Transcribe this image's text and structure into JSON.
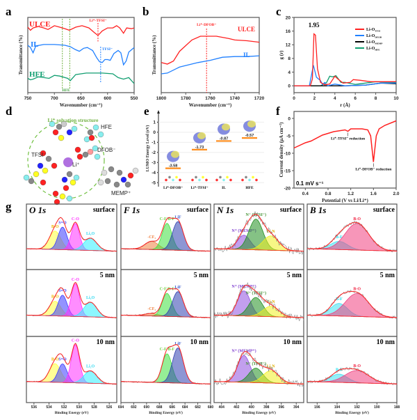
{
  "panel_labels": [
    "a",
    "b",
    "c",
    "d",
    "e",
    "f",
    "g"
  ],
  "colors": {
    "ULCE": "#ff2020",
    "IL": "#2080ff",
    "HFE": "#109e70"
  },
  "chart_data": [
    {
      "id": "a",
      "type": "line",
      "xlabel": "Wavenumber (cm⁻¹)",
      "ylabel": "Transmittance (%)",
      "xlim": [
        750,
        550
      ],
      "xticks": [
        "750",
        "700",
        "650",
        "600",
        "550"
      ],
      "series": [
        {
          "name": "ULCE",
          "color": "#ff2020",
          "points": [
            [
              750,
              8.7
            ],
            [
              745,
              8.3
            ],
            [
              740,
              8.6
            ],
            [
              730,
              8.8
            ],
            [
              720,
              8.6
            ],
            [
              712,
              8.4
            ],
            [
              700,
              8.9
            ],
            [
              690,
              8.7
            ],
            [
              680,
              8.5
            ],
            [
              672,
              8.3
            ],
            [
              660,
              8.7
            ],
            [
              648,
              8.9
            ],
            [
              635,
              8.6
            ],
            [
              625,
              8.0
            ],
            [
              618,
              7.6
            ],
            [
              610,
              8.2
            ],
            [
              600,
              8.6
            ],
            [
              590,
              8.6
            ],
            [
              583,
              8.9
            ],
            [
              577,
              8.6
            ],
            [
              570,
              7.9
            ],
            [
              564,
              8.6
            ],
            [
              555,
              8.5
            ],
            [
              550,
              8.6
            ]
          ]
        },
        {
          "name": "IL",
          "color": "#2080ff",
          "points": [
            [
              750,
              6.3
            ],
            [
              745,
              6.0
            ],
            [
              740,
              5.3
            ],
            [
              735,
              6.2
            ],
            [
              720,
              6.4
            ],
            [
              700,
              6.4
            ],
            [
              680,
              6.3
            ],
            [
              670,
              6.1
            ],
            [
              660,
              5.7
            ],
            [
              653,
              5.5
            ],
            [
              645,
              5.9
            ],
            [
              638,
              6.0
            ],
            [
              628,
              5.6
            ],
            [
              620,
              4.6
            ],
            [
              615,
              4.1
            ],
            [
              610,
              4.0
            ],
            [
              605,
              4.4
            ],
            [
              600,
              4.4
            ],
            [
              595,
              4.3
            ],
            [
              588,
              5.2
            ],
            [
              580,
              5.6
            ],
            [
              575,
              5.3
            ],
            [
              570,
              3.7
            ],
            [
              565,
              4.2
            ],
            [
              560,
              5.4
            ],
            [
              550,
              6.0
            ]
          ]
        },
        {
          "name": "HFE",
          "color": "#109e70",
          "points": [
            [
              750,
              1.9
            ],
            [
              745,
              1.7
            ],
            [
              740,
              1.8
            ],
            [
              730,
              2.1
            ],
            [
              720,
              2.0
            ],
            [
              710,
              1.9
            ],
            [
              700,
              2.3
            ],
            [
              690,
              2.2
            ],
            [
              680,
              2.0
            ],
            [
              675,
              1.9
            ],
            [
              670,
              1.6
            ],
            [
              660,
              2.4
            ],
            [
              640,
              2.6
            ],
            [
              610,
              2.6
            ],
            [
              590,
              2.5
            ],
            [
              580,
              2.0
            ],
            [
              570,
              1.8
            ],
            [
              560,
              2.0
            ],
            [
              550,
              1.2
            ]
          ]
        }
      ],
      "annotations": [
        {
          "text": "Li⁺-TFSI⁻",
          "x": 618,
          "color": "#ff2020"
        },
        {
          "text": "TFSI⁻",
          "x": 613,
          "color": "#2080ff"
        },
        {
          "text": "HFE",
          "x": [
            685,
            671
          ],
          "color": "#70b040"
        }
      ]
    },
    {
      "id": "b",
      "type": "line",
      "xlabel": "Wavenumber (cm⁻¹)",
      "ylabel": "Transmittance (%)",
      "xlim": [
        1800,
        1720
      ],
      "xticks": [
        "1800",
        "1780",
        "1760",
        "1740",
        "1720"
      ],
      "series": [
        {
          "name": "ULCE",
          "color": "#ff2020",
          "points": [
            [
              1800,
              4.0
            ],
            [
              1795,
              3.8
            ],
            [
              1790,
              4.2
            ],
            [
              1785,
              5.5
            ],
            [
              1775,
              7.0
            ],
            [
              1768,
              7.5
            ],
            [
              1755,
              7.5
            ],
            [
              1745,
              7.2
            ],
            [
              1740,
              7.0
            ],
            [
              1730,
              6.9
            ],
            [
              1720,
              6.7
            ]
          ]
        },
        {
          "name": "IL",
          "color": "#2080ff",
          "points": [
            [
              1800,
              2.5
            ],
            [
              1795,
              2.6
            ],
            [
              1785,
              3.4
            ],
            [
              1770,
              4.0
            ],
            [
              1760,
              4.3
            ],
            [
              1750,
              4.7
            ],
            [
              1740,
              4.8
            ],
            [
              1730,
              4.8
            ],
            [
              1720,
              4.9
            ]
          ]
        }
      ],
      "annotations": [
        {
          "text": "Li⁺-DFOB⁻",
          "x": 1763,
          "color": "#ff2020"
        }
      ]
    },
    {
      "id": "c",
      "type": "line",
      "xlabel": "r (Å)",
      "ylabel": "g (r)",
      "xlim": [
        0,
        10
      ],
      "ylim": [
        -2,
        20
      ],
      "xticks": [
        "0",
        "2",
        "4",
        "6",
        "8",
        "10"
      ],
      "yticks": [
        "0",
        "4",
        "8",
        "12",
        "16",
        "20"
      ],
      "legend": "top-right",
      "series": [
        {
          "name": "Li-O",
          "sub": "TFSI",
          "color": "#ff2020",
          "points": [
            [
              0,
              0
            ],
            [
              1.6,
              0
            ],
            [
              1.8,
              2
            ],
            [
              1.95,
              15.2
            ],
            [
              2.1,
              14.8
            ],
            [
              2.3,
              5
            ],
            [
              2.6,
              1
            ],
            [
              3,
              0.3
            ],
            [
              3.5,
              0.5
            ],
            [
              4,
              2.8
            ],
            [
              4.3,
              2
            ],
            [
              4.8,
              0.8
            ],
            [
              5.5,
              1
            ],
            [
              5.8,
              1.8
            ],
            [
              6.5,
              1.6
            ],
            [
              7.5,
              1.2
            ],
            [
              10,
              1.2
            ]
          ]
        },
        {
          "name": "Li-O",
          "sub": "DFOB",
          "color": "#2080ff",
          "points": [
            [
              0,
              0
            ],
            [
              1.5,
              0
            ],
            [
              1.9,
              6
            ],
            [
              2.2,
              2.5
            ],
            [
              2.6,
              1.5
            ],
            [
              2.8,
              0.3
            ],
            [
              3,
              1
            ],
            [
              3.3,
              0
            ],
            [
              4,
              0.5
            ],
            [
              5,
              0
            ],
            [
              7,
              0.2
            ],
            [
              8.5,
              0.8
            ],
            [
              10,
              0.8
            ]
          ]
        },
        {
          "name": "Li-O",
          "sub": "MEMP",
          "color": "#000000",
          "points": [
            [
              0,
              0
            ],
            [
              2.5,
              0
            ],
            [
              5,
              0
            ],
            [
              7,
              0.2
            ],
            [
              8.5,
              0.8
            ],
            [
              10,
              0.6
            ]
          ]
        },
        {
          "name": "Li-O",
          "sub": "HFE",
          "color": "#109e70",
          "points": [
            [
              0,
              0
            ],
            [
              2.6,
              0
            ],
            [
              3.2,
              1
            ],
            [
              3.5,
              2.8
            ],
            [
              3.8,
              2.6
            ],
            [
              4.1,
              3
            ],
            [
              4.6,
              1
            ],
            [
              5,
              1
            ],
            [
              6,
              0.4
            ],
            [
              8,
              1.2
            ],
            [
              10,
              1
            ]
          ]
        }
      ],
      "annotations": [
        {
          "text": "1.95",
          "x": 1.95,
          "y": 16.5
        }
      ]
    },
    {
      "id": "e",
      "type": "bar",
      "ylabel": "LUMO Energy Level (eV)",
      "ylim": [
        -5,
        1
      ],
      "yticks": [
        "1",
        "0",
        "-1",
        "-2",
        "-3",
        "-4",
        "-5"
      ],
      "categories": [
        "Li⁺-DFOB⁻",
        "Li⁺-TFSI⁻",
        "IL",
        "HFE"
      ],
      "values": [
        -3.58,
        -1.73,
        -0.87,
        -0.57
      ],
      "value_labels": [
        "-3.58",
        "-1.73",
        "-0.87",
        "-0.57"
      ],
      "level_color": "#ff8c1a"
    },
    {
      "id": "f",
      "type": "line",
      "xlabel": "Potential (V vs Li/Li⁺)",
      "ylabel": "Current density (μA cm⁻²)",
      "xlim": [
        0.2,
        2.0
      ],
      "ylim": [
        -20,
        0
      ],
      "xticks": [
        "0.4",
        "0.8",
        "1.2",
        "1.6",
        "2.0"
      ],
      "yticks": [
        "0",
        "-5",
        "-10",
        "-15",
        "-20"
      ],
      "scan_rate": "0.1 mV s⁻¹",
      "series": [
        {
          "color": "#ff2020",
          "points": [
            [
              0.2,
              -8.5
            ],
            [
              0.4,
              -7
            ],
            [
              0.5,
              -6.5
            ],
            [
              0.7,
              -4.8
            ],
            [
              0.9,
              -3.8
            ],
            [
              1.1,
              -3.3
            ],
            [
              1.15,
              -3.7
            ],
            [
              1.2,
              -3
            ],
            [
              1.4,
              -3
            ],
            [
              1.5,
              -3.3
            ],
            [
              1.55,
              -5
            ],
            [
              1.6,
              -12.5
            ],
            [
              1.65,
              -5
            ],
            [
              1.7,
              -3
            ],
            [
              1.8,
              -2
            ],
            [
              2.0,
              -0.7
            ]
          ]
        }
      ],
      "annotations": [
        {
          "text": "Li⁺-TFSI⁻ reduction",
          "x": 1.15,
          "y": -3.7
        },
        {
          "text": "Li⁺-DFOB⁻ reduction",
          "x": 1.6,
          "y": -12.5
        }
      ]
    },
    {
      "id": "g",
      "type": "area",
      "xlabel": "Binding Energy (eV)",
      "rows": [
        "surface",
        "5 nm",
        "10 nm"
      ],
      "columns": [
        {
          "title": "O 1s",
          "xlim": [
            537,
            525
          ],
          "xticks": [
            "536",
            "534",
            "532",
            "530",
            "528",
            "526"
          ],
          "noise": 0.015,
          "components": [
            {
              "name": "B-O",
              "color": "#ffff40",
              "label_color": "#f0b400",
              "center": 533.2,
              "fwhm": 1.8,
              "height": [
                0.45,
                0.35,
                0.45
              ]
            },
            {
              "name": "S=O",
              "color": "#3a3aff",
              "label_color": "#3a3aff",
              "center": 532.2,
              "fwhm": 1.4,
              "height": [
                0.55,
                0.5,
                0.45
              ]
            },
            {
              "name": "C-O",
              "color": "#ff30ff",
              "label_color": "#ff30ff",
              "center": 530.5,
              "fwhm": 1.3,
              "height": [
                0.65,
                0.78,
                0.92
              ]
            },
            {
              "name": "Li₂O",
              "color": "#30f0ff",
              "label_color": "#30d8f0",
              "center": 528.5,
              "fwhm": 2.0,
              "height": [
                0.3,
                0.35,
                0.3
              ]
            }
          ]
        },
        {
          "title": "F 1s",
          "xlim": [
            694,
            680
          ],
          "xticks": [
            "694",
            "692",
            "690",
            "688",
            "686",
            "684",
            "682",
            "680"
          ],
          "noise": 0.015,
          "components": [
            {
              "name": "-CF₃",
              "color": "#f08040",
              "label_color": "#f08040",
              "center": 689.2,
              "fwhm": 2.5,
              "height": [
                0.2,
                0.06,
                0
              ]
            },
            {
              "name": "C-F/B-F",
              "color": "#40e040",
              "label_color": "#70d040",
              "center": 686.8,
              "fwhm": 1.8,
              "height": [
                0.65,
                0.55,
                0.7
              ]
            },
            {
              "name": "LiF",
              "color": "#3040b0",
              "label_color": "#4060d0",
              "center": 685.1,
              "fwhm": 2.0,
              "height": [
                0.7,
                0.6,
                0.85
              ]
            }
          ]
        },
        {
          "title": "N 1s",
          "xlim": [
            405,
            393
          ],
          "xticks": [
            "404",
            "402",
            "400",
            "398",
            "396",
            "394"
          ],
          "noise": 0.08,
          "components": [
            {
              "name": "N⁺ (MEMP⁺)",
              "color": "#9050e0",
              "label_color": "#8040d0",
              "center": 401.0,
              "fwhm": 2.0,
              "height": [
                0.35,
                0.6,
                0.65
              ]
            },
            {
              "name": "N⁻ (TFSI⁻)",
              "color": "#209020",
              "label_color": "#409030",
              "center": 399.4,
              "fwhm": 2.2,
              "height": [
                0.75,
                0.45,
                0.35
              ]
            },
            {
              "name": "Li₃N",
              "color": "#f0f020",
              "label_color": "#e0b000",
              "center": 397.4,
              "fwhm": 2.5,
              "height": [
                0.35,
                0.25,
                0.3
              ]
            }
          ]
        },
        {
          "title": "B 1s",
          "xlim": [
            197,
            188
          ],
          "xticks": [
            "196",
            "194",
            "192",
            "190",
            "188"
          ],
          "noise": 0.035,
          "components": [
            {
              "name": "B-F",
              "color": "#40e0f0",
              "label_color": "#20e0f0",
              "center": 193.8,
              "fwhm": 2.0,
              "height": [
                0.2,
                0.3,
                0.2
              ]
            },
            {
              "name": "B-O",
              "color": "#f04080",
              "label_color": "#f02040",
              "center": 192.0,
              "fwhm": 2.8,
              "height": [
                0.65,
                0.55,
                0.3
              ]
            }
          ]
        }
      ]
    }
  ],
  "panel_d": {
    "title": "Li⁺ solvation structure",
    "labels": {
      "hfe": "HFE",
      "dfob": "DFOB⁻",
      "tfsi": "TFSI⁻",
      "li": "Li⁺",
      "memp": "MEMP⁺"
    }
  }
}
